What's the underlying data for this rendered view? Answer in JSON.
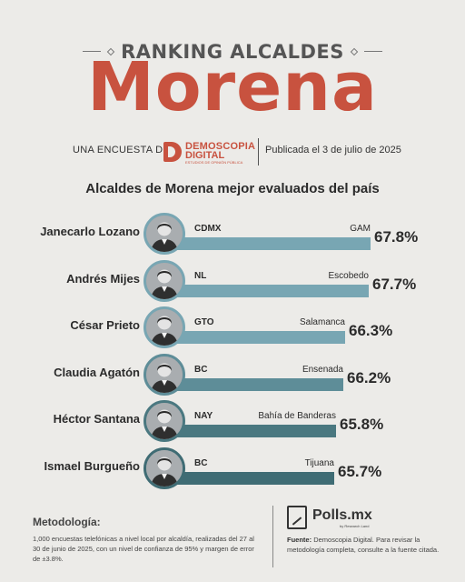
{
  "header": {
    "kicker": "RANKING ALCALDES",
    "title": "Morena",
    "survey_by": "UNA ENCUESTA DE:",
    "logo_line1": "DEMOSCOPIA",
    "logo_line2": "DIGITAL",
    "logo_tagline": "ESTUDIOS DE OPINIÓN PÚBLICA",
    "published": "Publicada el 3 de julio de 2025"
  },
  "colors": {
    "title": "#c8523f",
    "background": "#ecebe8",
    "bar_light": "#78a6b3",
    "bar_dark": "#3f6c74"
  },
  "chart_data": {
    "type": "bar",
    "title": "Alcaldes de Morena mejor evaluados del país",
    "unit": "%",
    "categories": [
      "Janecarlo Lozano",
      "Andrés Mijes",
      "César Prieto",
      "Claudia Agatón",
      "Héctor Santana",
      "Ismael Burgueño"
    ],
    "states": [
      "CDMX",
      "NL",
      "GTO",
      "BC",
      "NAY",
      "BC"
    ],
    "municipalities": [
      "GAM",
      "Escobedo",
      "Salamanca",
      "Ensenada",
      "Bahía de Banderas",
      "Tijuana"
    ],
    "values": [
      67.8,
      67.7,
      66.3,
      66.2,
      65.8,
      65.7
    ],
    "value_labels": [
      "67.8%",
      "67.7%",
      "66.3%",
      "66.2%",
      "65.8%",
      "65.7%"
    ],
    "bar_colors": [
      "#78a6b3",
      "#78a6b3",
      "#78a6b3",
      "#5e8d98",
      "#4a7880",
      "#3f6c74"
    ],
    "avatar_icon": "person-photo-icon"
  },
  "footer": {
    "methodology_heading": "Metodología:",
    "methodology_text": "1,000 encuestas telefónicas a nivel local por alcaldía, realizadas del 27 al 30 de junio de 2025, con un nivel de confianza de 95% y margen de error de ±3.8%.",
    "brand": "Polls.mx",
    "brand_sub": "by Research Land",
    "source_label": "Fuente:",
    "source_text": "Demoscopia Digital. Para revisar la metodología completa, consulte a la fuente citada."
  }
}
